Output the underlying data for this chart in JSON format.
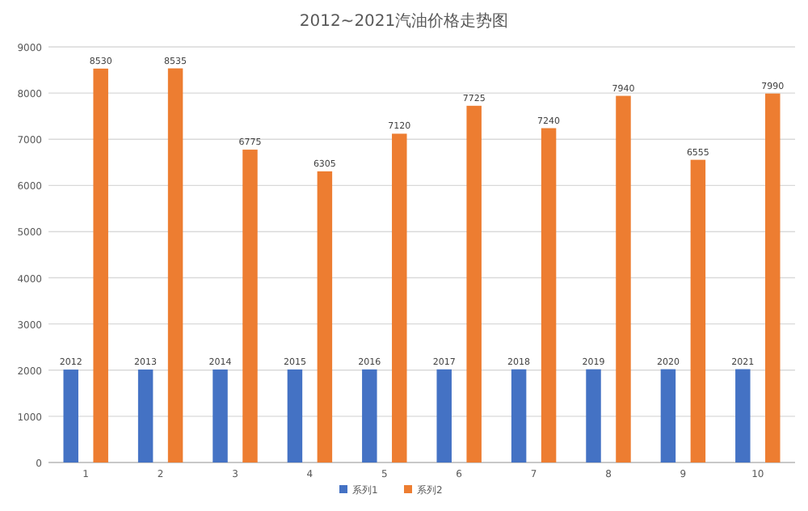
{
  "chart_data": {
    "type": "bar",
    "title": "2012~2021汽油价格走势图",
    "categories": [
      "1",
      "2",
      "3",
      "4",
      "5",
      "6",
      "7",
      "8",
      "9",
      "10"
    ],
    "series": [
      {
        "name": "系列1",
        "color": "#4472c4",
        "values": [
          2012,
          2013,
          2014,
          2015,
          2016,
          2017,
          2018,
          2019,
          2020,
          2021
        ]
      },
      {
        "name": "系列2",
        "color": "#ed7d31",
        "values": [
          8530,
          8535,
          6775,
          6305,
          7120,
          7725,
          7240,
          7940,
          6555,
          7990
        ]
      }
    ],
    "ylim": [
      0,
      9000
    ],
    "yticks": [
      0,
      1000,
      2000,
      3000,
      4000,
      5000,
      6000,
      7000,
      8000,
      9000
    ],
    "grid": "y",
    "legend": "bottom",
    "data_labels": true
  }
}
